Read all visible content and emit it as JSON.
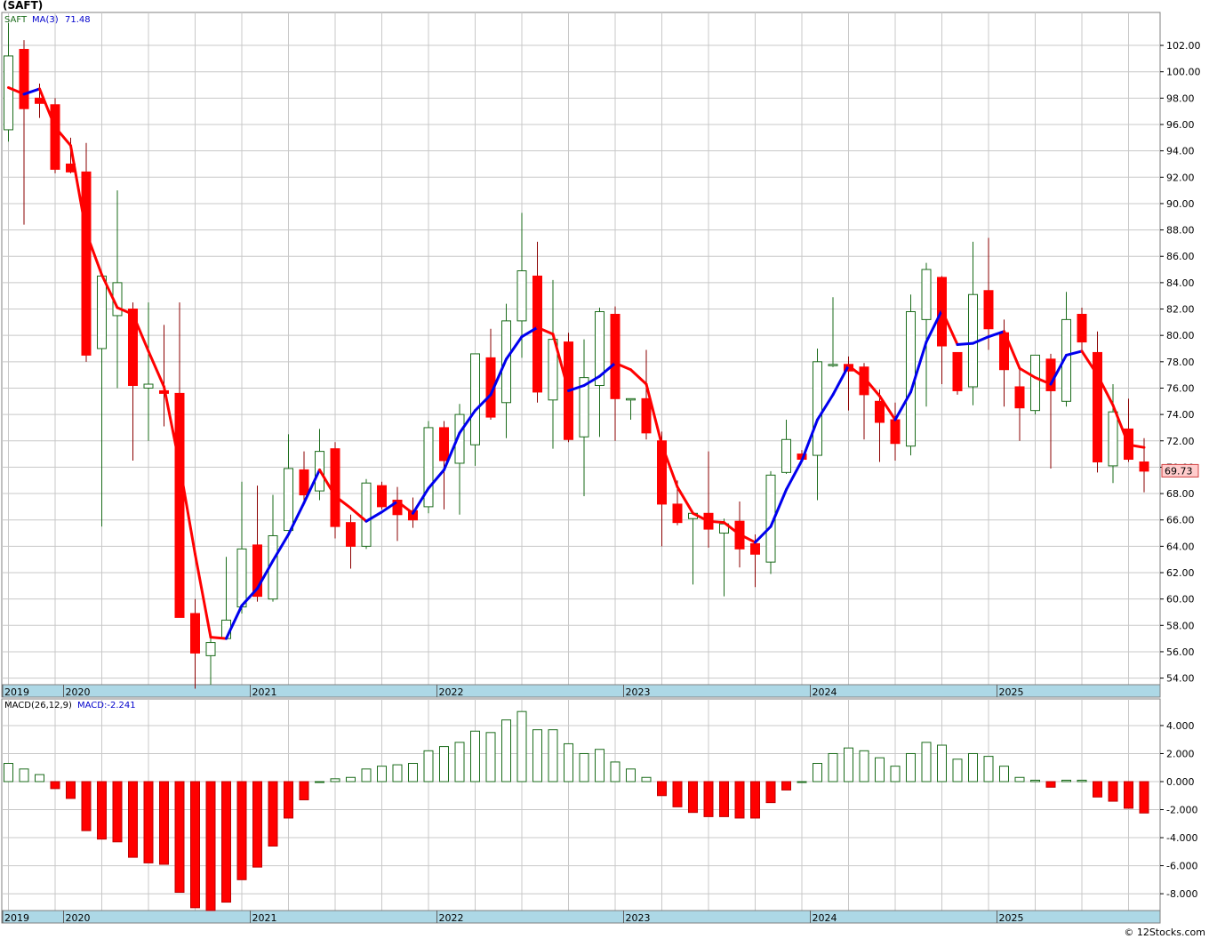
{
  "title": "(SAFT)",
  "credit": "© 12Stocks.com",
  "colors": {
    "up_candle_fill": "#ffffff",
    "up_candle_stroke": "#1a6b1a",
    "down_candle": "#ff0000",
    "ma_up": "#0000ee",
    "ma_down": "#ff0000",
    "grid": "#c8c8c8",
    "axis_band": "#add8e6",
    "price_label_bg": "#ffcccc",
    "macd_pos_stroke": "#1a6b1a",
    "macd_neg_fill": "#ff0000"
  },
  "chart_data": [
    {
      "type": "candlestick",
      "legend": {
        "ticker": "SAFT",
        "ma_label": "MA(3)",
        "ma_value": "71.48"
      },
      "last_price_label": "69.73",
      "x_tick_labels": [
        {
          "label": "2019",
          "index": 0
        },
        {
          "label": "2020",
          "index": 4
        },
        {
          "label": "2021",
          "index": 16
        },
        {
          "label": "2022",
          "index": 28
        },
        {
          "label": "2023",
          "index": 40
        },
        {
          "label": "2024",
          "index": 52
        },
        {
          "label": "2025",
          "index": 64
        }
      ],
      "y_ticks": [
        "54.00",
        "56.00",
        "58.00",
        "60.00",
        "62.00",
        "64.00",
        "66.00",
        "68.00",
        "70.00",
        "72.00",
        "74.00",
        "76.00",
        "78.00",
        "80.00",
        "82.00",
        "84.00",
        "86.00",
        "88.00",
        "90.00",
        "92.00",
        "94.00",
        "96.00",
        "98.00",
        "100.00",
        "102.00"
      ],
      "ylim": [
        53.5,
        104.5
      ],
      "candles": [
        {
          "o": 95.6,
          "h": 103.7,
          "l": 94.7,
          "c": 101.2
        },
        {
          "o": 101.7,
          "h": 102.4,
          "l": 88.4,
          "c": 97.2
        },
        {
          "o": 98.0,
          "h": 99.1,
          "l": 96.5,
          "c": 97.6
        },
        {
          "o": 97.5,
          "h": 98.0,
          "l": 92.3,
          "c": 92.6
        },
        {
          "o": 93.0,
          "h": 95.0,
          "l": 92.3,
          "c": 92.4
        },
        {
          "o": 92.4,
          "h": 94.6,
          "l": 78.0,
          "c": 78.5
        },
        {
          "o": 79.0,
          "h": 84.5,
          "l": 65.5,
          "c": 84.5
        },
        {
          "o": 81.5,
          "h": 91.0,
          "l": 76.0,
          "c": 84.0
        },
        {
          "o": 82.0,
          "h": 82.5,
          "l": 70.5,
          "c": 76.2
        },
        {
          "o": 76.0,
          "h": 82.5,
          "l": 72.0,
          "c": 76.3
        },
        {
          "o": 75.8,
          "h": 80.8,
          "l": 73.1,
          "c": 75.6
        },
        {
          "o": 75.6,
          "h": 82.5,
          "l": 58.6,
          "c": 58.6
        },
        {
          "o": 58.9,
          "h": 60.0,
          "l": 53.2,
          "c": 55.9
        },
        {
          "o": 55.7,
          "h": 57.5,
          "l": 53.5,
          "c": 56.7
        },
        {
          "o": 57.0,
          "h": 63.2,
          "l": 57.0,
          "c": 58.4
        },
        {
          "o": 59.4,
          "h": 68.9,
          "l": 58.9,
          "c": 63.8
        },
        {
          "o": 64.1,
          "h": 68.6,
          "l": 59.8,
          "c": 60.2
        },
        {
          "o": 60.0,
          "h": 67.9,
          "l": 59.8,
          "c": 64.8
        },
        {
          "o": 65.2,
          "h": 72.5,
          "l": 65.2,
          "c": 69.9
        },
        {
          "o": 69.8,
          "h": 71.2,
          "l": 67.1,
          "c": 67.9
        },
        {
          "o": 68.2,
          "h": 72.9,
          "l": 67.5,
          "c": 71.2
        },
        {
          "o": 71.4,
          "h": 71.9,
          "l": 64.6,
          "c": 65.5
        },
        {
          "o": 65.8,
          "h": 66.4,
          "l": 62.3,
          "c": 64.0
        },
        {
          "o": 64.0,
          "h": 69.1,
          "l": 63.8,
          "c": 68.8
        },
        {
          "o": 68.6,
          "h": 68.9,
          "l": 66.8,
          "c": 67.0
        },
        {
          "o": 67.5,
          "h": 68.5,
          "l": 64.4,
          "c": 66.4
        },
        {
          "o": 66.7,
          "h": 67.7,
          "l": 65.4,
          "c": 66.0
        },
        {
          "o": 67.0,
          "h": 73.5,
          "l": 66.5,
          "c": 73.0
        },
        {
          "o": 73.0,
          "h": 73.5,
          "l": 66.8,
          "c": 70.5
        },
        {
          "o": 70.3,
          "h": 74.8,
          "l": 66.4,
          "c": 74.0
        },
        {
          "o": 71.7,
          "h": 78.2,
          "l": 70.1,
          "c": 78.6
        },
        {
          "o": 78.3,
          "h": 80.5,
          "l": 73.6,
          "c": 73.8
        },
        {
          "o": 74.9,
          "h": 82.4,
          "l": 72.2,
          "c": 81.1
        },
        {
          "o": 81.1,
          "h": 89.3,
          "l": 78.3,
          "c": 84.9
        },
        {
          "o": 84.5,
          "h": 87.1,
          "l": 74.9,
          "c": 75.7
        },
        {
          "o": 75.1,
          "h": 84.2,
          "l": 71.4,
          "c": 79.7
        },
        {
          "o": 79.5,
          "h": 80.2,
          "l": 71.9,
          "c": 72.1
        },
        {
          "o": 72.3,
          "h": 79.7,
          "l": 67.8,
          "c": 76.8
        },
        {
          "o": 76.2,
          "h": 82.1,
          "l": 72.3,
          "c": 81.8
        },
        {
          "o": 81.6,
          "h": 82.2,
          "l": 72.0,
          "c": 75.2
        },
        {
          "o": 75.2,
          "h": 75.2,
          "l": 73.6,
          "c": 75.2
        },
        {
          "o": 75.2,
          "h": 78.9,
          "l": 72.1,
          "c": 72.6
        },
        {
          "o": 72.0,
          "h": 72.7,
          "l": 64.0,
          "c": 67.2
        },
        {
          "o": 67.2,
          "h": 69.0,
          "l": 65.6,
          "c": 65.8
        },
        {
          "o": 66.1,
          "h": 66.6,
          "l": 61.1,
          "c": 66.5
        },
        {
          "o": 66.5,
          "h": 71.2,
          "l": 63.9,
          "c": 65.3
        },
        {
          "o": 65.0,
          "h": 66.1,
          "l": 60.2,
          "c": 65.7
        },
        {
          "o": 65.9,
          "h": 67.4,
          "l": 62.4,
          "c": 63.8
        },
        {
          "o": 64.2,
          "h": 64.9,
          "l": 60.9,
          "c": 63.4
        },
        {
          "o": 62.8,
          "h": 69.7,
          "l": 61.9,
          "c": 69.4
        },
        {
          "o": 69.6,
          "h": 73.6,
          "l": 69.5,
          "c": 72.1
        },
        {
          "o": 71.0,
          "h": 71.3,
          "l": 70.4,
          "c": 70.6
        },
        {
          "o": 70.9,
          "h": 79.0,
          "l": 67.5,
          "c": 78.0
        },
        {
          "o": 77.8,
          "h": 82.9,
          "l": 77.6,
          "c": 77.8
        },
        {
          "o": 77.8,
          "h": 78.4,
          "l": 74.3,
          "c": 77.3
        },
        {
          "o": 77.6,
          "h": 77.9,
          "l": 72.1,
          "c": 75.5
        },
        {
          "o": 75.0,
          "h": 75.9,
          "l": 70.4,
          "c": 73.4
        },
        {
          "o": 73.6,
          "h": 74.9,
          "l": 70.5,
          "c": 71.8
        },
        {
          "o": 71.6,
          "h": 83.1,
          "l": 70.9,
          "c": 81.8
        },
        {
          "o": 81.2,
          "h": 85.5,
          "l": 74.6,
          "c": 85.0
        },
        {
          "o": 84.4,
          "h": 84.5,
          "l": 76.3,
          "c": 79.2
        },
        {
          "o": 78.7,
          "h": 78.7,
          "l": 75.5,
          "c": 75.8
        },
        {
          "o": 76.1,
          "h": 87.1,
          "l": 74.7,
          "c": 83.1
        },
        {
          "o": 83.4,
          "h": 87.4,
          "l": 78.9,
          "c": 80.5
        },
        {
          "o": 80.2,
          "h": 81.2,
          "l": 74.6,
          "c": 77.4
        },
        {
          "o": 76.1,
          "h": 77.5,
          "l": 72.0,
          "c": 74.5
        },
        {
          "o": 74.3,
          "h": 78.4,
          "l": 74.0,
          "c": 78.5
        },
        {
          "o": 78.2,
          "h": 78.6,
          "l": 69.9,
          "c": 75.8
        },
        {
          "o": 75.0,
          "h": 83.3,
          "l": 74.6,
          "c": 81.2
        },
        {
          "o": 81.6,
          "h": 82.1,
          "l": 78.9,
          "c": 79.5
        },
        {
          "o": 78.7,
          "h": 80.3,
          "l": 69.6,
          "c": 70.4
        },
        {
          "o": 70.1,
          "h": 76.3,
          "l": 68.8,
          "c": 74.2
        },
        {
          "o": 72.9,
          "h": 75.2,
          "l": 70.4,
          "c": 70.6
        },
        {
          "o": 70.4,
          "h": 72.2,
          "l": 68.1,
          "c": 69.7
        }
      ],
      "ma3": [
        98.8,
        98.3,
        98.7,
        95.8,
        94.4,
        87.8,
        84.6,
        82.1,
        81.6,
        78.8,
        76.1,
        70.2,
        63.4,
        57.1,
        57.0,
        59.5,
        60.8,
        62.9,
        64.9,
        67.3,
        69.8,
        67.8,
        66.9,
        65.9,
        66.6,
        67.4,
        66.5,
        68.4,
        69.8,
        72.6,
        74.3,
        75.5,
        78.2,
        79.9,
        80.6,
        80.1,
        75.8,
        76.2,
        76.9,
        77.9,
        77.4,
        76.3,
        71.7,
        68.5,
        66.5,
        65.9,
        65.8,
        64.9,
        64.3,
        65.5,
        68.3,
        70.5,
        73.6,
        75.5,
        77.7,
        76.8,
        75.4,
        73.6,
        75.7,
        79.5,
        81.9,
        79.3,
        79.4,
        79.9,
        80.3,
        77.5,
        76.8,
        76.3,
        78.5,
        78.8,
        77.0,
        74.7,
        71.7,
        71.5
      ]
    },
    {
      "type": "bar",
      "legend": {
        "label": "MACD(26,12,9)",
        "value_label": "MACD:-2.241"
      },
      "x_tick_labels": [
        {
          "label": "2019",
          "index": 0
        },
        {
          "label": "2020",
          "index": 4
        },
        {
          "label": "2021",
          "index": 16
        },
        {
          "label": "2022",
          "index": 28
        },
        {
          "label": "2023",
          "index": 40
        },
        {
          "label": "2024",
          "index": 52
        },
        {
          "label": "2025",
          "index": 64
        }
      ],
      "y_ticks": [
        "-8.000",
        "-6.000",
        "-4.000",
        "-2.000",
        "0.000",
        "2.000",
        "4.000"
      ],
      "ylim": [
        -9.2,
        5.9
      ],
      "values": [
        1.3,
        0.9,
        0.5,
        -0.5,
        -1.2,
        -3.5,
        -4.1,
        -4.3,
        -5.4,
        -5.8,
        -5.9,
        -7.9,
        -9.0,
        -9.2,
        -8.6,
        -7.0,
        -6.1,
        -4.6,
        -2.6,
        -1.3,
        0.0,
        0.2,
        0.3,
        0.9,
        1.1,
        1.2,
        1.3,
        2.2,
        2.5,
        2.8,
        3.6,
        3.5,
        4.4,
        5.0,
        3.7,
        3.7,
        2.7,
        2.0,
        2.3,
        1.4,
        0.9,
        0.3,
        -1.0,
        -1.8,
        -2.2,
        -2.5,
        -2.5,
        -2.6,
        -2.6,
        -1.5,
        -0.6,
        0.0,
        1.3,
        2.0,
        2.4,
        2.2,
        1.7,
        1.1,
        2.0,
        2.8,
        2.6,
        1.6,
        2.0,
        1.8,
        1.1,
        0.3,
        0.1,
        -0.4,
        0.1,
        0.1,
        -1.1,
        -1.4,
        -1.9,
        -2.241
      ]
    }
  ]
}
